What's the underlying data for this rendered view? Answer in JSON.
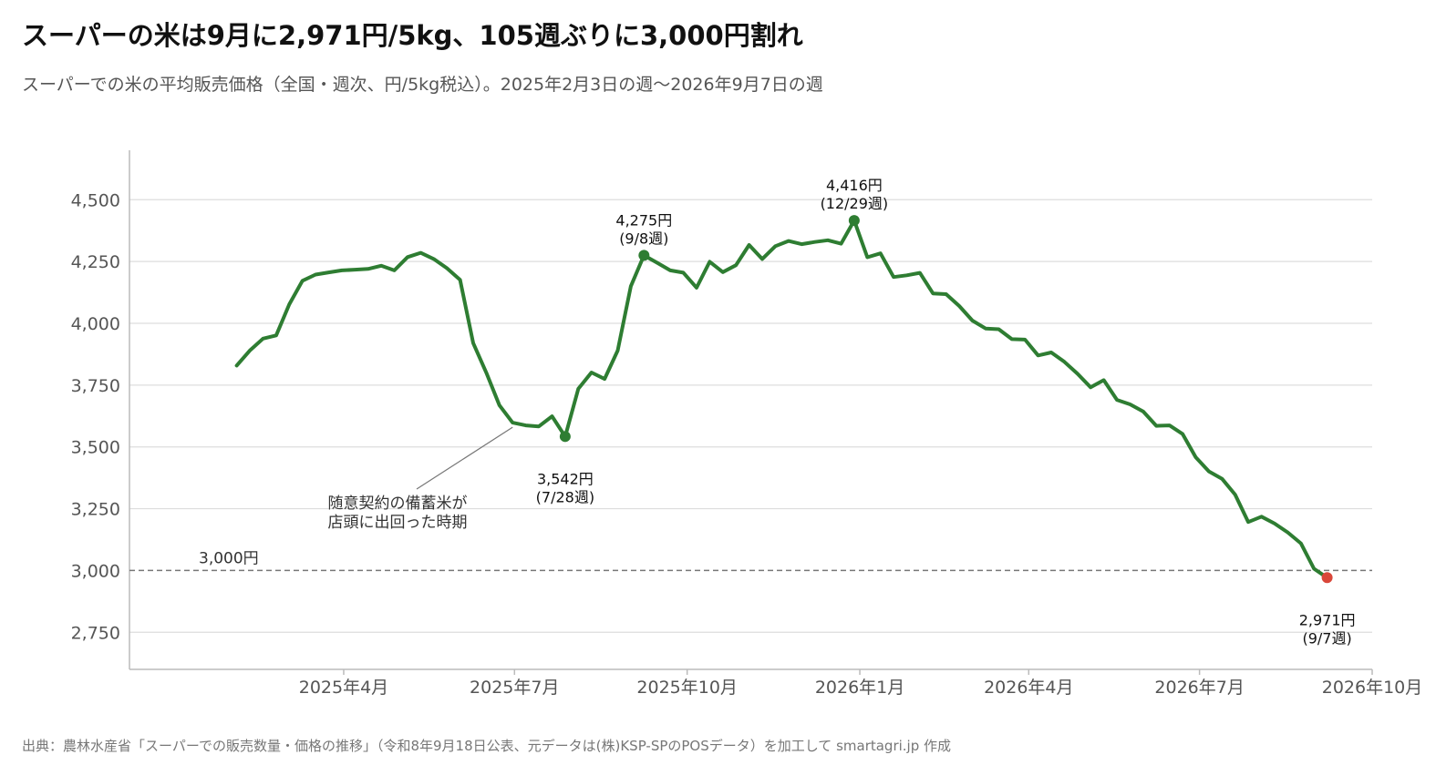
{
  "title": "スーパーの米は9月に2,971円/5kg、105週ぶりに3,000円割れ",
  "subtitle": "スーパーでの米の平均販売価格（全国・週次、円/5kg税込）。2025年2月3日の週〜2026年9月7日の週",
  "source": "出典：農林水産省「スーパーでの販売数量・価格の推移」（令和8年9月18日公表、元データは(株)KSP-SPのPOSデータ）を加工して smartagri.jp 作成",
  "colors": {
    "line": "#2e7d32",
    "last_point": "#d9473a",
    "grid": "#dddddd",
    "reference": "#777777"
  },
  "chart_data": {
    "type": "line",
    "title": "スーパーの米は9月に2,971円/5kg、105週ぶりに3,000円割れ",
    "x_start": "2025-02-03",
    "x_interval": "weekly",
    "ylim": [
      2600,
      4700
    ],
    "yticks": [
      2750,
      3000,
      3250,
      3500,
      3750,
      4000,
      4250,
      4500
    ],
    "ytick_labels": [
      "2,750",
      "3,000",
      "3,250",
      "3,500",
      "3,750",
      "4,000",
      "4,250",
      "4,500"
    ],
    "xticks": [
      "2025-04-01",
      "2025-07-01",
      "2025-10-01",
      "2026-01-01",
      "2026-04-01",
      "2026-07-01",
      "2026-10-01"
    ],
    "xtick_labels": [
      "2025年4月",
      "2025年7月",
      "2025年10月",
      "2026年1月",
      "2026年4月",
      "2026年7月",
      "2026年10月"
    ],
    "grid": true,
    "series": [
      {
        "values": [
          3829,
          3890,
          3938,
          3951,
          4077,
          4172,
          4197,
          4206,
          4214,
          4217,
          4220,
          4233,
          4214,
          4268,
          4285,
          4260,
          4223,
          4176,
          3920,
          3800,
          3668,
          3598,
          3587,
          3583,
          3624,
          3542,
          3735,
          3801,
          3775,
          3890,
          4150,
          4275,
          4245,
          4214,
          4205,
          4144,
          4249,
          4207,
          4235,
          4317,
          4260,
          4312,
          4333,
          4320,
          4329,
          4336,
          4322,
          4416,
          4267,
          4283,
          4187,
          4194,
          4204,
          4121,
          4118,
          4070,
          4011,
          3979,
          3976,
          3936,
          3934,
          3870,
          3882,
          3844,
          3796,
          3741,
          3770,
          3690,
          3672,
          3643,
          3585,
          3587,
          3552,
          3458,
          3401,
          3371,
          3307,
          3196,
          3218,
          3190,
          3154,
          3110,
          3007,
          2971
        ]
      }
    ],
    "reference_line": {
      "value": 3000,
      "label": "3,000円"
    },
    "annotations": [
      {
        "value_label": "4,275円",
        "week_label": "(9/8週)",
        "index": 31
      },
      {
        "value_label": "3,542円",
        "week_label": "(7/28週)",
        "index": 25
      },
      {
        "value_label": "4,416円",
        "week_label": "(12/29週)",
        "index": 47
      },
      {
        "value_label": "2,971円",
        "week_label": "(9/7週)",
        "index": 83
      }
    ],
    "note": {
      "line1": "随意契約の備蓄米が",
      "line2": "店頭に出回った時期"
    }
  }
}
